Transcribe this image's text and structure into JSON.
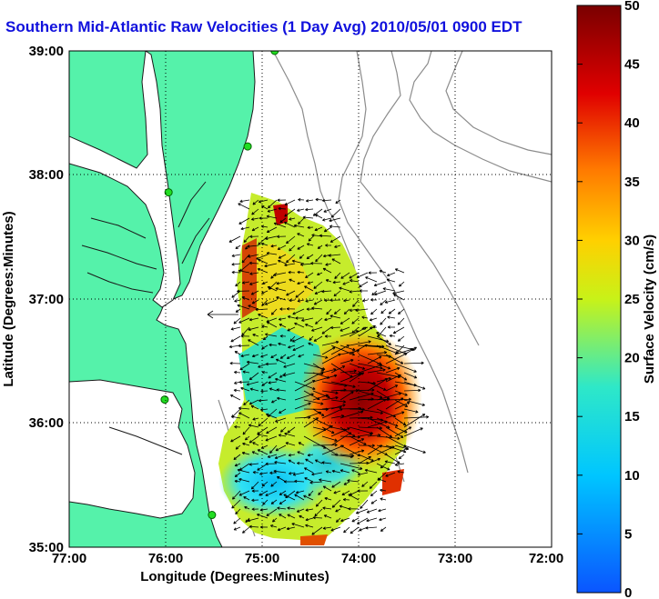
{
  "title": "Southern Mid-Atlantic Raw Velocities (1 Day Avg) 2010/05/01 0900 EDT",
  "map": {
    "x_axis_label": "Longitude (Degrees:Minutes)",
    "y_axis_label": "Latitude (Degrees:Minutes)",
    "x_ticks": [
      "77:00",
      "76:00",
      "75:00",
      "74:00",
      "73:00",
      "72:00"
    ],
    "y_ticks": [
      "39:00",
      "38:00",
      "37:00",
      "36:00",
      "35:00"
    ],
    "lon_range": [
      -77,
      -72
    ],
    "lat_range": [
      35,
      39
    ],
    "grid": "dotted",
    "land_color": "#55f2aa",
    "bathymetry_color": "#8c8c8c",
    "station_color": "#22dd22",
    "vector_color": "#000000"
  },
  "colorbar": {
    "label": "Surface Velocity (cm/s)",
    "ticks": [
      "0",
      "5",
      "10",
      "15",
      "20",
      "25",
      "30",
      "35",
      "40",
      "45",
      "50"
    ],
    "range": [
      0,
      50
    ],
    "colormap": "jet"
  },
  "stations": [
    {
      "lon": -74.87,
      "lat": 39.0
    },
    {
      "lon": -75.15,
      "lat": 38.23
    },
    {
      "lon": -75.97,
      "lat": 37.86
    },
    {
      "lon": -76.01,
      "lat": 36.19
    },
    {
      "lon": -75.52,
      "lat": 35.26
    }
  ]
}
